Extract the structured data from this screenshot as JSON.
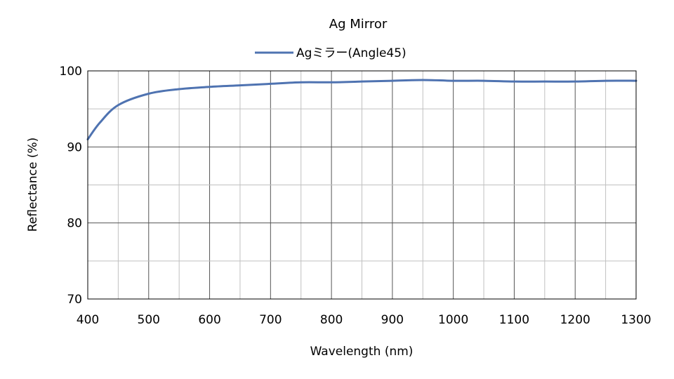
{
  "chart_data": {
    "type": "line",
    "title": "Ag Mirror",
    "xlabel": "Wavelength (nm)",
    "ylabel": "Reflectance (%)",
    "xlim": [
      400,
      1300
    ],
    "ylim": [
      70,
      100
    ],
    "x_ticks": [
      400,
      500,
      600,
      700,
      800,
      900,
      1000,
      1100,
      1200,
      1300
    ],
    "y_ticks": [
      70,
      80,
      90,
      100
    ],
    "grid": true,
    "legend_position": "top-center",
    "series": [
      {
        "name": "Agミラー(Angle45)",
        "color": "#4f73b1",
        "x": [
          400,
          420,
          450,
          500,
          550,
          600,
          650,
          700,
          750,
          800,
          850,
          900,
          950,
          1000,
          1050,
          1100,
          1150,
          1200,
          1250,
          1300
        ],
        "y": [
          91.0,
          93.2,
          95.5,
          97.0,
          97.6,
          97.9,
          98.1,
          98.3,
          98.5,
          98.5,
          98.6,
          98.7,
          98.8,
          98.7,
          98.7,
          98.6,
          98.6,
          98.6,
          98.7,
          98.7
        ]
      }
    ]
  }
}
